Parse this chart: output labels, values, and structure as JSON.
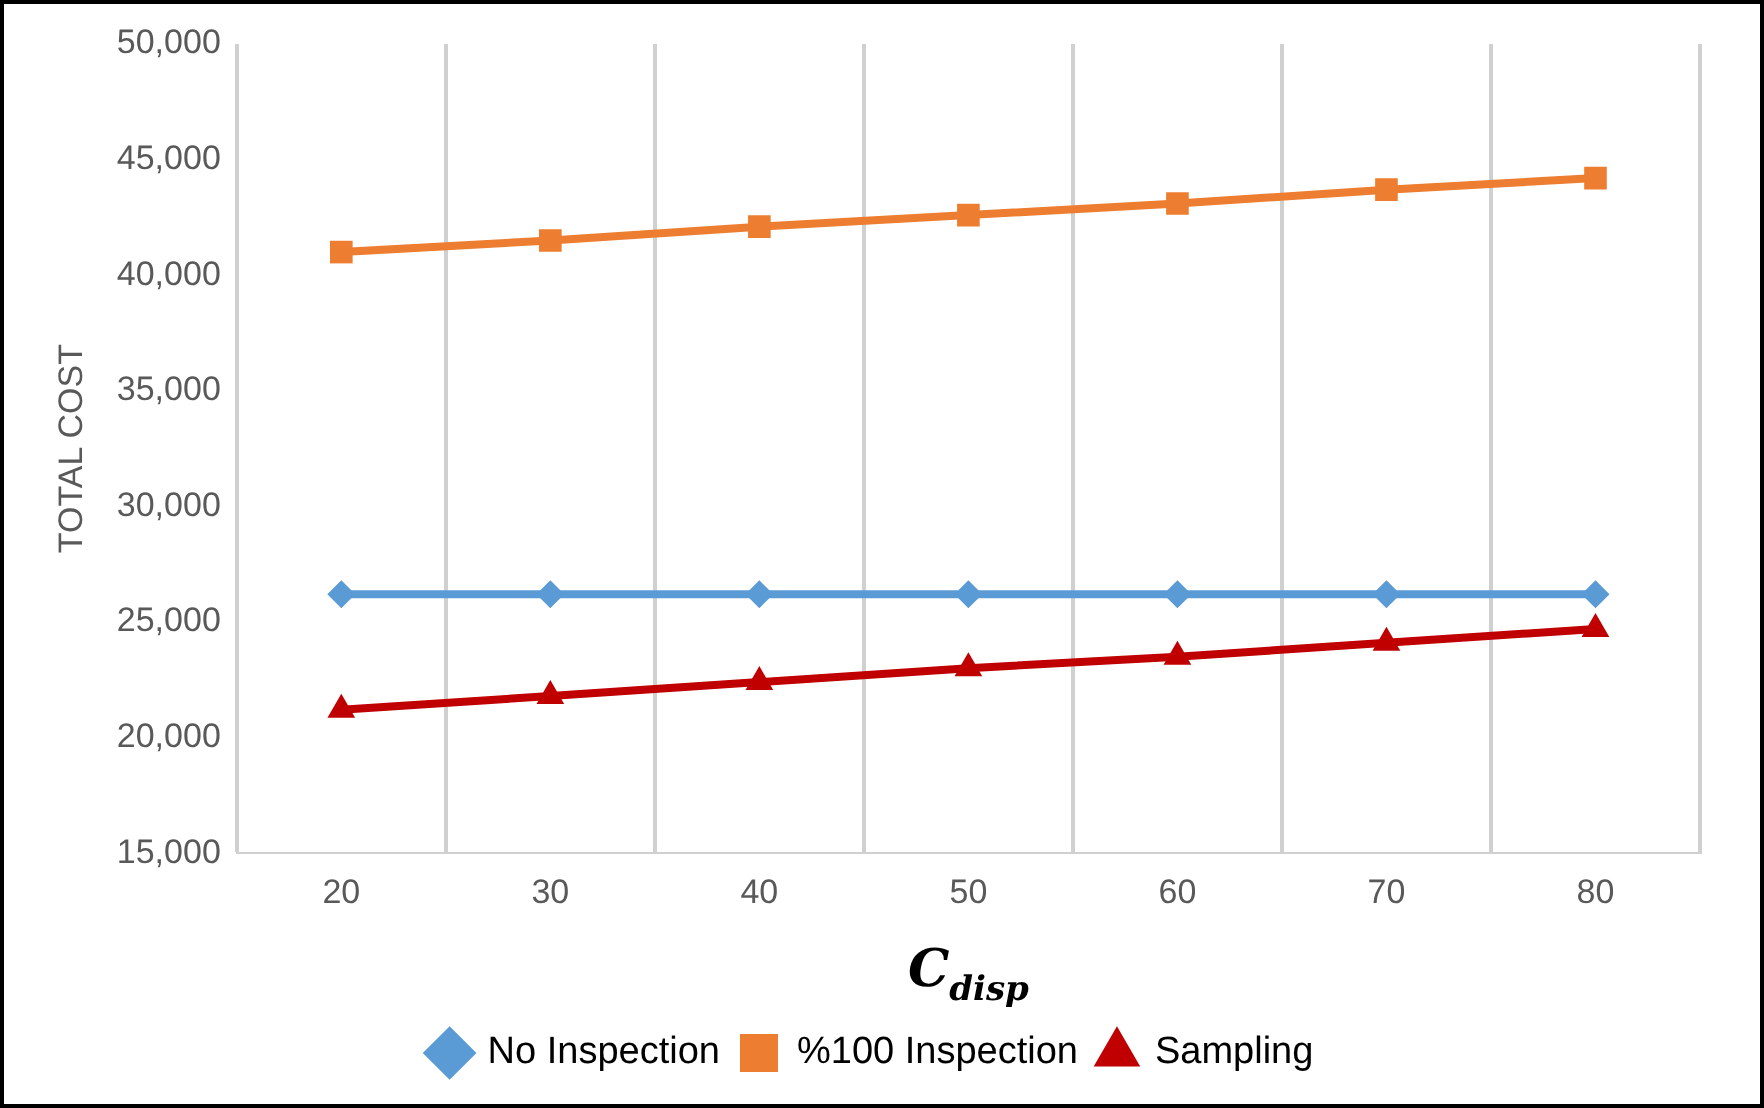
{
  "chart_data": {
    "type": "line",
    "xlabel": "C$_{disp}$",
    "ylabel": "TOTAL COST",
    "categories": [
      "20",
      "30",
      "40",
      "50",
      "60",
      "70",
      "80"
    ],
    "series": [
      {
        "name": "No Inspection",
        "color": "#5b9bd5",
        "marker": "diamond",
        "values": [
          26200,
          26200,
          26200,
          26200,
          26200,
          26200,
          26200
        ]
      },
      {
        "name": "%100 Inspection",
        "color": "#ed7d31",
        "marker": "square",
        "values": [
          41000,
          41500,
          42100,
          42600,
          43100,
          43700,
          44200
        ]
      },
      {
        "name": "Sampling",
        "color": "#c00000",
        "marker": "triangle",
        "values": [
          21200,
          21800,
          22400,
          23000,
          23500,
          24100,
          24700
        ]
      }
    ],
    "ylim": [
      15000,
      50000
    ],
    "yticks": [
      {
        "value": 15000,
        "label": "15,000"
      },
      {
        "value": 20000,
        "label": "20,000"
      },
      {
        "value": 25000,
        "label": "25,000"
      },
      {
        "value": 30000,
        "label": "30,000"
      },
      {
        "value": 35000,
        "label": "35,000"
      },
      {
        "value": 40000,
        "label": "40,000"
      },
      {
        "value": 45000,
        "label": "45,000"
      },
      {
        "value": 50000,
        "label": "50,000"
      }
    ],
    "grid": "x",
    "legend": "bottom"
  }
}
